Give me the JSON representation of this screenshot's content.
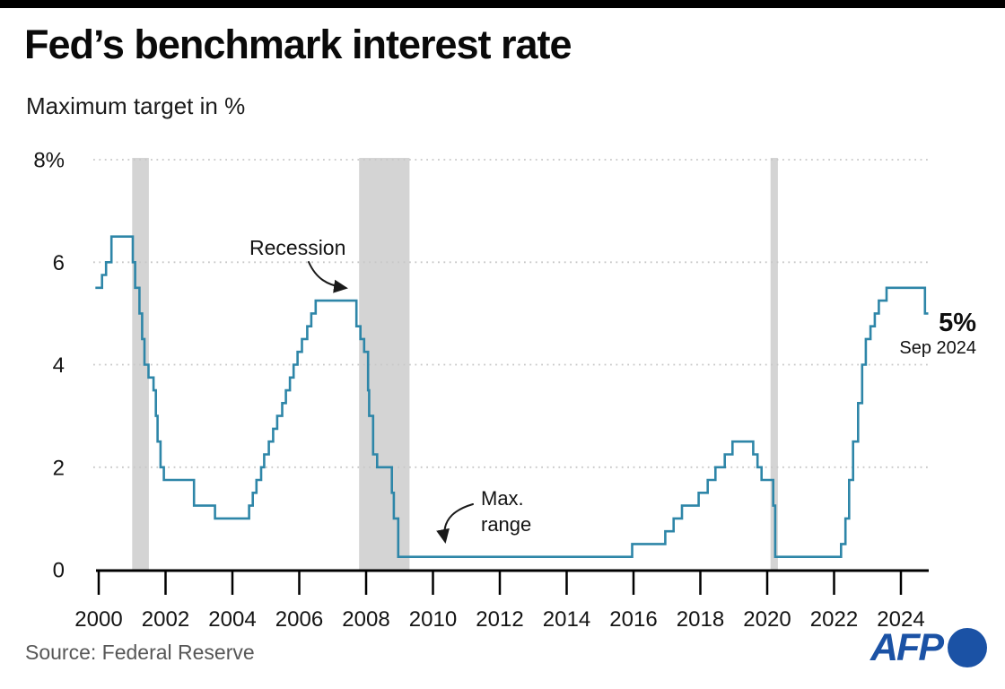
{
  "header": {
    "title": "Fed’s benchmark interest rate",
    "subtitle": "Maximum target in %"
  },
  "annotations": {
    "recession": "Recession",
    "max_range_line1": "Max.",
    "max_range_line2": "range",
    "latest_value": "5%",
    "latest_date": "Sep 2024"
  },
  "footer": {
    "source": "Source: Federal Reserve",
    "logo_text": "AFP"
  },
  "chart_data": {
    "type": "line",
    "title": "Fed’s benchmark interest rate",
    "subtitle": "Maximum target in %",
    "xlabel": "",
    "ylabel": "Maximum target in %",
    "x_axis": {
      "ticks": [
        2000,
        2002,
        2004,
        2006,
        2008,
        2010,
        2012,
        2014,
        2016,
        2018,
        2020,
        2022,
        2024
      ],
      "range": [
        1999.9,
        2024.83
      ]
    },
    "y_axis": {
      "ticks": [
        {
          "value": 8,
          "label": "8%"
        },
        {
          "value": 6,
          "label": "6"
        },
        {
          "value": 4,
          "label": "4"
        },
        {
          "value": 2,
          "label": "2"
        },
        {
          "value": 0,
          "label": "0"
        }
      ],
      "range": [
        0,
        8
      ]
    },
    "grid": "dotted-horizontal",
    "legend": "none",
    "line_color": "#2E86A8",
    "recession_band_color": "#D4D4D4",
    "recessions": [
      {
        "start": 2001.0,
        "end": 2001.5
      },
      {
        "start": 2007.79,
        "end": 2009.3
      },
      {
        "start": 2020.1,
        "end": 2020.32
      }
    ],
    "latest": {
      "value_pct": 5.0,
      "date": "Sep 2024"
    },
    "series": [
      {
        "name": "Fed benchmark interest rate, maximum target (%)",
        "end_year": 2024.82,
        "step_points": [
          [
            1999.9,
            5.5
          ],
          [
            2000.1,
            5.75
          ],
          [
            2000.22,
            6.0
          ],
          [
            2000.38,
            6.5
          ],
          [
            2001.02,
            6.0
          ],
          [
            2001.09,
            5.5
          ],
          [
            2001.22,
            5.0
          ],
          [
            2001.3,
            4.5
          ],
          [
            2001.37,
            4.0
          ],
          [
            2001.49,
            3.75
          ],
          [
            2001.64,
            3.5
          ],
          [
            2001.71,
            3.0
          ],
          [
            2001.76,
            2.5
          ],
          [
            2001.85,
            2.0
          ],
          [
            2001.95,
            1.75
          ],
          [
            2002.85,
            1.25
          ],
          [
            2003.48,
            1.0
          ],
          [
            2004.5,
            1.25
          ],
          [
            2004.61,
            1.5
          ],
          [
            2004.72,
            1.75
          ],
          [
            2004.86,
            2.0
          ],
          [
            2004.95,
            2.25
          ],
          [
            2005.09,
            2.5
          ],
          [
            2005.22,
            2.75
          ],
          [
            2005.34,
            3.0
          ],
          [
            2005.49,
            3.25
          ],
          [
            2005.6,
            3.5
          ],
          [
            2005.72,
            3.75
          ],
          [
            2005.83,
            4.0
          ],
          [
            2005.95,
            4.25
          ],
          [
            2006.08,
            4.5
          ],
          [
            2006.24,
            4.75
          ],
          [
            2006.36,
            5.0
          ],
          [
            2006.49,
            5.25
          ],
          [
            2007.71,
            4.75
          ],
          [
            2007.83,
            4.5
          ],
          [
            2007.94,
            4.25
          ],
          [
            2008.06,
            3.5
          ],
          [
            2008.09,
            3.0
          ],
          [
            2008.21,
            2.25
          ],
          [
            2008.33,
            2.0
          ],
          [
            2008.77,
            1.5
          ],
          [
            2008.83,
            1.0
          ],
          [
            2008.96,
            0.25
          ],
          [
            2015.96,
            0.5
          ],
          [
            2016.95,
            0.75
          ],
          [
            2017.2,
            1.0
          ],
          [
            2017.45,
            1.25
          ],
          [
            2017.95,
            1.5
          ],
          [
            2018.22,
            1.75
          ],
          [
            2018.45,
            2.0
          ],
          [
            2018.73,
            2.25
          ],
          [
            2018.96,
            2.5
          ],
          [
            2019.58,
            2.25
          ],
          [
            2019.71,
            2.0
          ],
          [
            2019.83,
            1.75
          ],
          [
            2020.18,
            1.25
          ],
          [
            2020.24,
            0.25
          ],
          [
            2022.21,
            0.5
          ],
          [
            2022.34,
            1.0
          ],
          [
            2022.45,
            1.75
          ],
          [
            2022.57,
            2.5
          ],
          [
            2022.72,
            3.25
          ],
          [
            2022.84,
            4.0
          ],
          [
            2022.95,
            4.5
          ],
          [
            2023.09,
            4.75
          ],
          [
            2023.22,
            5.0
          ],
          [
            2023.34,
            5.25
          ],
          [
            2023.57,
            5.5
          ],
          [
            2024.72,
            5.0
          ]
        ]
      }
    ]
  }
}
